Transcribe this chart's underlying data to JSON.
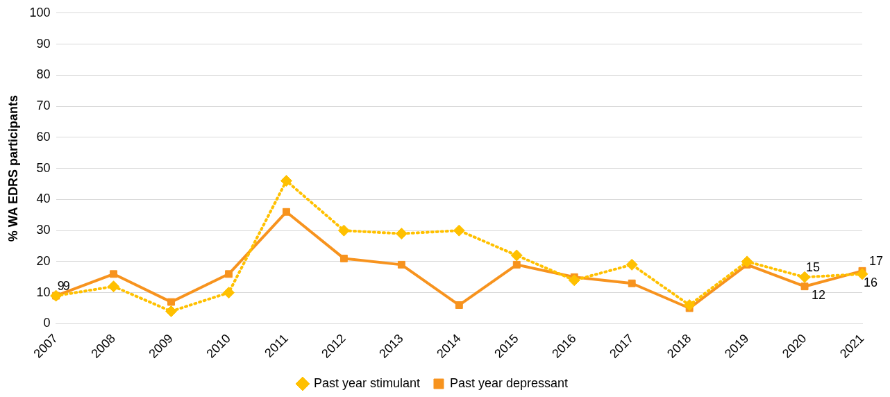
{
  "chart_data": {
    "type": "line",
    "ylabel": "% WA EDRS participants",
    "categories": [
      "2007",
      "2008",
      "2009",
      "2010",
      "2011",
      "2012",
      "2013",
      "2014",
      "2015",
      "2016",
      "2017",
      "2018",
      "2019",
      "2020",
      "2021"
    ],
    "series": [
      {
        "name": "Past year stimulant",
        "color": "#ffc000",
        "marker": "diamond",
        "line_style": "dotted",
        "values": [
          9,
          12,
          4,
          10,
          46,
          30,
          29,
          30,
          22,
          14,
          19,
          6,
          20,
          15,
          16
        ],
        "value_labels": [
          "9",
          null,
          null,
          null,
          null,
          null,
          null,
          null,
          null,
          null,
          null,
          null,
          null,
          "15",
          "16"
        ]
      },
      {
        "name": "Past year depressant",
        "color": "#f7931e",
        "marker": "square",
        "line_style": "solid",
        "values": [
          9,
          16,
          7,
          16,
          36,
          21,
          19,
          6,
          19,
          15,
          13,
          5,
          19,
          12,
          17
        ],
        "value_labels": [
          "9",
          null,
          null,
          null,
          null,
          null,
          null,
          null,
          null,
          null,
          null,
          null,
          null,
          "12",
          "17"
        ]
      }
    ],
    "ylim": [
      0,
      100
    ],
    "yticks": [
      0,
      10,
      20,
      30,
      40,
      50,
      60,
      70,
      80,
      90,
      100
    ],
    "grid": "y",
    "legend": "bottom"
  }
}
